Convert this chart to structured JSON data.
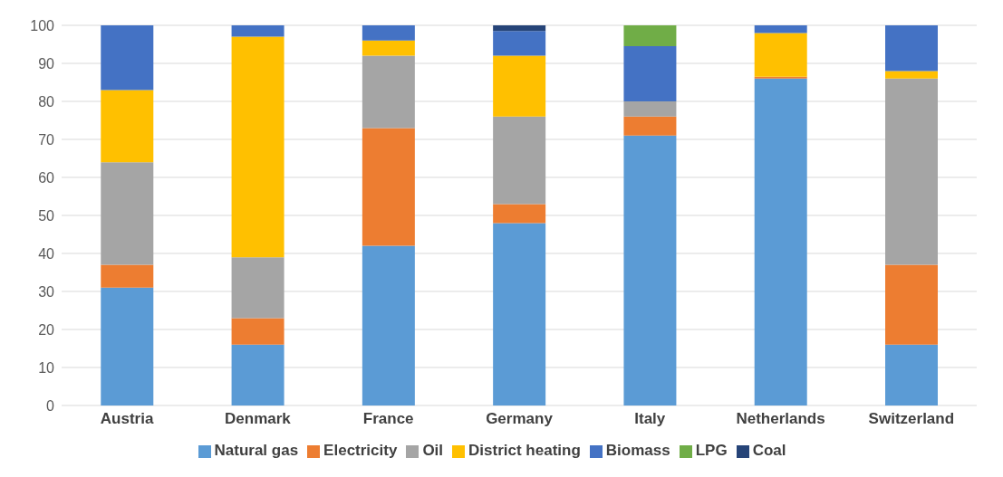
{
  "chart_data": {
    "type": "bar",
    "stacked": true,
    "categories": [
      "Austria",
      "Denmark",
      "France",
      "Germany",
      "Italy",
      "Netherlands",
      "Switzerland"
    ],
    "series": [
      {
        "name": "Natural gas",
        "color": "#5b9bd5",
        "values": [
          31,
          16,
          42,
          48,
          71,
          86,
          16
        ]
      },
      {
        "name": "Electricity",
        "color": "#ed7d31",
        "values": [
          6,
          7,
          31,
          5,
          5,
          0.5,
          21
        ]
      },
      {
        "name": "Oil",
        "color": "#a5a5a5",
        "values": [
          27,
          16,
          19,
          23,
          4,
          0,
          49
        ]
      },
      {
        "name": "District heating",
        "color": "#ffc000",
        "values": [
          19,
          58,
          4,
          16,
          0,
          11.5,
          2
        ]
      },
      {
        "name": "Biomass",
        "color": "#4472c4",
        "values": [
          17,
          3,
          4,
          6.5,
          14.5,
          2,
          12
        ]
      },
      {
        "name": "LPG",
        "color": "#70ad47",
        "values": [
          0,
          0,
          0,
          0,
          5.5,
          0,
          0
        ]
      },
      {
        "name": "Coal",
        "color": "#264478",
        "values": [
          0,
          0,
          0,
          1.5,
          0,
          0,
          0
        ]
      }
    ],
    "ylim": [
      0,
      100
    ],
    "yticks": [
      0,
      10,
      20,
      30,
      40,
      50,
      60,
      70,
      80,
      90,
      100
    ],
    "grid": "y",
    "legend": "bottom"
  }
}
